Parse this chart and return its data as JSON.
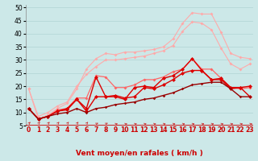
{
  "x": [
    0,
    1,
    2,
    3,
    4,
    5,
    6,
    7,
    8,
    9,
    10,
    11,
    12,
    13,
    14,
    15,
    16,
    17,
    18,
    19,
    20,
    21,
    22,
    23
  ],
  "series": [
    {
      "color": "#ffaaaa",
      "linewidth": 0.8,
      "markersize": 2.0,
      "y": [
        19.0,
        7.5,
        9.0,
        11.5,
        13.5,
        19.0,
        26.5,
        30.5,
        32.5,
        32.0,
        33.0,
        33.0,
        33.5,
        34.0,
        35.0,
        38.0,
        44.0,
        48.0,
        47.5,
        47.5,
        40.5,
        32.5,
        31.0,
        30.5
      ]
    },
    {
      "color": "#ffaaaa",
      "linewidth": 0.8,
      "markersize": 2.0,
      "y": [
        19.0,
        8.5,
        10.0,
        12.5,
        14.0,
        20.0,
        24.5,
        27.5,
        30.0,
        30.0,
        30.5,
        31.0,
        31.5,
        32.5,
        33.5,
        35.5,
        41.0,
        44.5,
        44.0,
        41.5,
        34.5,
        28.5,
        26.5,
        28.5
      ]
    },
    {
      "color": "#ff6666",
      "linewidth": 0.9,
      "markersize": 2.0,
      "y": [
        11.5,
        7.5,
        8.5,
        11.0,
        11.5,
        15.5,
        15.5,
        24.0,
        23.5,
        19.5,
        19.5,
        20.5,
        22.5,
        22.5,
        23.5,
        25.5,
        26.5,
        30.5,
        26.5,
        26.5,
        23.0,
        19.5,
        19.0,
        19.5
      ]
    },
    {
      "color": "#dd0000",
      "linewidth": 1.0,
      "markersize": 2.5,
      "y": [
        11.5,
        7.5,
        8.5,
        10.5,
        11.5,
        15.0,
        11.5,
        23.5,
        16.0,
        16.0,
        15.0,
        19.5,
        20.0,
        19.5,
        23.0,
        24.0,
        26.5,
        30.5,
        26.0,
        22.5,
        23.0,
        19.5,
        19.5,
        20.0
      ]
    },
    {
      "color": "#dd0000",
      "linewidth": 1.0,
      "markersize": 2.5,
      "y": [
        11.5,
        7.5,
        8.5,
        10.5,
        11.0,
        15.0,
        10.5,
        16.0,
        16.0,
        16.5,
        15.5,
        16.0,
        19.5,
        19.0,
        20.5,
        22.5,
        25.0,
        26.0,
        26.0,
        22.5,
        22.5,
        19.0,
        19.5,
        16.0
      ]
    },
    {
      "color": "#990000",
      "linewidth": 1.0,
      "markersize": 1.8,
      "y": [
        11.5,
        7.5,
        8.5,
        9.5,
        10.0,
        11.5,
        10.0,
        11.5,
        12.0,
        13.0,
        13.5,
        14.0,
        15.0,
        15.5,
        16.5,
        17.5,
        19.0,
        20.5,
        21.0,
        21.5,
        21.5,
        19.0,
        16.0,
        16.0
      ]
    }
  ],
  "xlim": [
    0,
    23
  ],
  "ylim": [
    5,
    51
  ],
  "yticks": [
    5,
    10,
    15,
    20,
    25,
    30,
    35,
    40,
    45,
    50
  ],
  "xlabel": "Vent moyen/en rafales ( km/h )",
  "bg_color": "#cce8e8",
  "grid_color": "#b0d4d4",
  "xlabel_color": "#cc0000",
  "xlabel_fontsize": 6.5,
  "tick_fontsize": 5.5
}
